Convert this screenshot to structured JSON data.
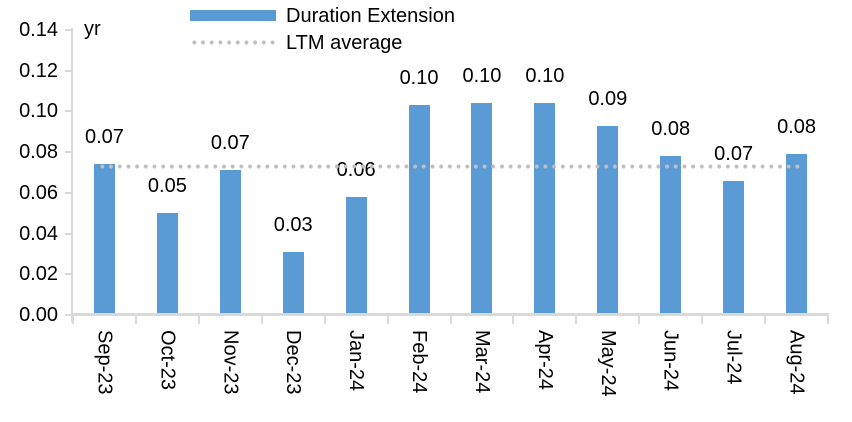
{
  "chart_data": {
    "type": "bar",
    "title": "",
    "y_unit_label": "yr",
    "categories": [
      "Sep-23",
      "Oct-23",
      "Nov-23",
      "Dec-23",
      "Jan-24",
      "Feb-24",
      "Mar-24",
      "Apr-24",
      "May-24",
      "Jun-24",
      "Jul-24",
      "Aug-24"
    ],
    "series": [
      {
        "name": "Duration Extension",
        "values": [
          0.074,
          0.05,
          0.071,
          0.031,
          0.058,
          0.103,
          0.104,
          0.104,
          0.093,
          0.078,
          0.066,
          0.079
        ],
        "data_labels": [
          "0.07",
          "0.05",
          "0.07",
          "0.03",
          "0.06",
          "0.10",
          "0.10",
          "0.10",
          "0.09",
          "0.08",
          "0.07",
          "0.08"
        ],
        "color": "#5B9BD5"
      }
    ],
    "reference_line": {
      "name": "LTM average",
      "value": 0.073,
      "style": "dotted",
      "color": "#BFBFBF"
    },
    "ylim": [
      0,
      0.14
    ],
    "y_ticks": [
      "0.14",
      "0.12",
      "0.10",
      "0.08",
      "0.06",
      "0.04",
      "0.02",
      "0.00"
    ],
    "grid": false,
    "legend_position": "top-center",
    "x_labels_rotation": "90deg-clockwise"
  },
  "colors": {
    "bar": "#5B9BD5",
    "reference_line": "#BFBFBF",
    "axis": "#D9D9D9",
    "text": "#000000",
    "background": "#FFFFFF"
  }
}
